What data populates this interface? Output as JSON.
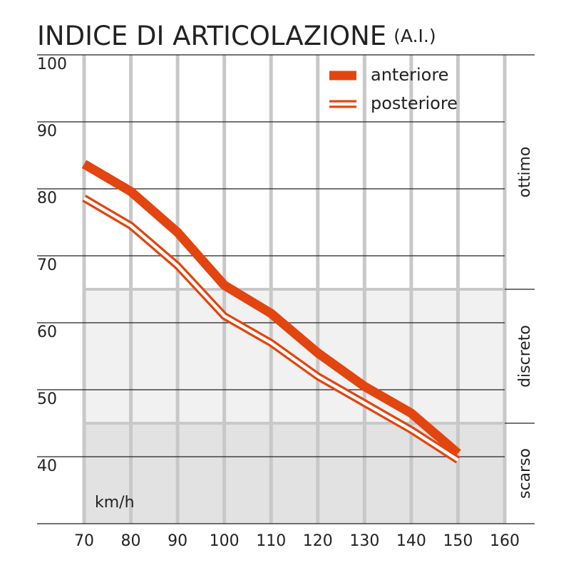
{
  "chart_data": {
    "type": "line",
    "title": "INDICE DI ARTICOLAZIONE",
    "subtitle": "(A.I.)",
    "x_label": "km/h",
    "x": [
      70,
      80,
      90,
      100,
      110,
      120,
      130,
      140,
      150
    ],
    "xlim": [
      70,
      160
    ],
    "xticks": [
      70,
      80,
      90,
      100,
      110,
      120,
      130,
      140,
      150,
      160
    ],
    "ylim": [
      30,
      100
    ],
    "yticks": [
      40,
      50,
      60,
      70,
      80,
      90,
      100
    ],
    "grid": true,
    "legend": "top-right",
    "bands": [
      {
        "label": "scarso",
        "from": 30,
        "to": 45,
        "color": "#e2e2e2"
      },
      {
        "label": "discreto",
        "from": 45,
        "to": 65,
        "color": "#f1f1f1"
      },
      {
        "label": "ottimo",
        "from": 65,
        "to": 100,
        "color": "#ffffff"
      }
    ],
    "series": [
      {
        "name": "anteriore",
        "color": "#e2450f",
        "style": "thick",
        "values": [
          83.7,
          79.6,
          73.5,
          65.6,
          61.4,
          55.5,
          50.5,
          46.5,
          40.5
        ]
      },
      {
        "name": "posteriore",
        "color": "#e2450f",
        "style": "double",
        "values": [
          78.6,
          74.5,
          68.5,
          61,
          57,
          52,
          48,
          44,
          39.5
        ]
      }
    ]
  }
}
